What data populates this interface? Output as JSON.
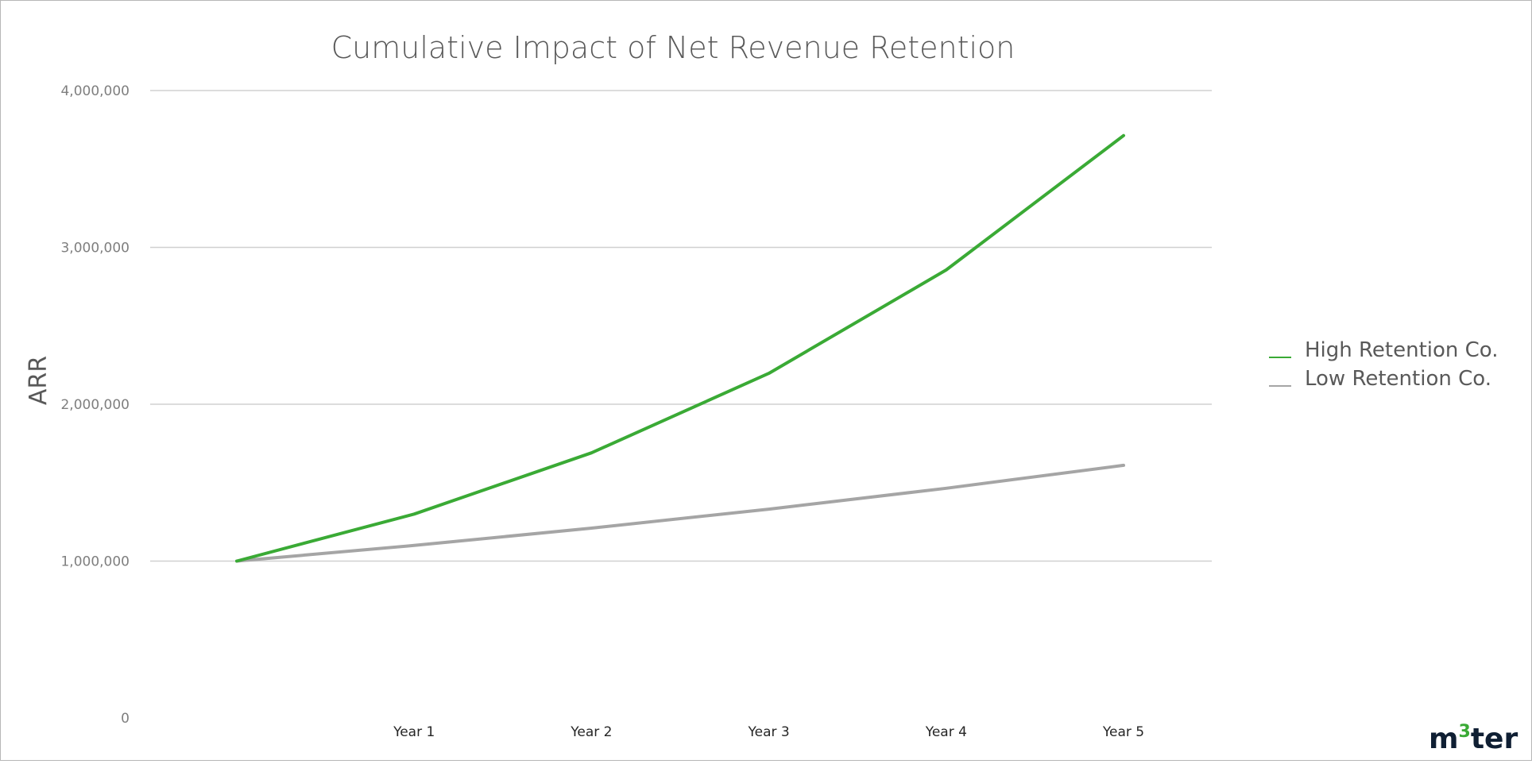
{
  "chart_data": {
    "type": "line",
    "title": "Cumulative Impact of Net Revenue Retention",
    "xlabel": "",
    "ylabel": "ARR",
    "categories": [
      "",
      "Year 1",
      "Year 2",
      "Year 3",
      "Year 4",
      "Year 5"
    ],
    "ylim": [
      0,
      4000000
    ],
    "yticks": [
      0,
      1000000,
      2000000,
      3000000,
      4000000
    ],
    "ytick_labels": [
      "0",
      "1,000,000",
      "2,000,000",
      "3,000,000",
      "4,000,000"
    ],
    "grid": true,
    "legend_position": "right",
    "series": [
      {
        "name": "High Retention Co.",
        "color": "#3aaa35",
        "values": [
          1000000,
          1300000,
          1690000,
          2197000,
          2856100,
          3712930
        ]
      },
      {
        "name": "Low Retention Co.",
        "color": "#a5a5a5",
        "values": [
          1000000,
          1100000,
          1210000,
          1331000,
          1464100,
          1610510
        ]
      }
    ]
  },
  "logo": {
    "text_left": "m",
    "text_sup": "3",
    "text_right": "ter"
  }
}
